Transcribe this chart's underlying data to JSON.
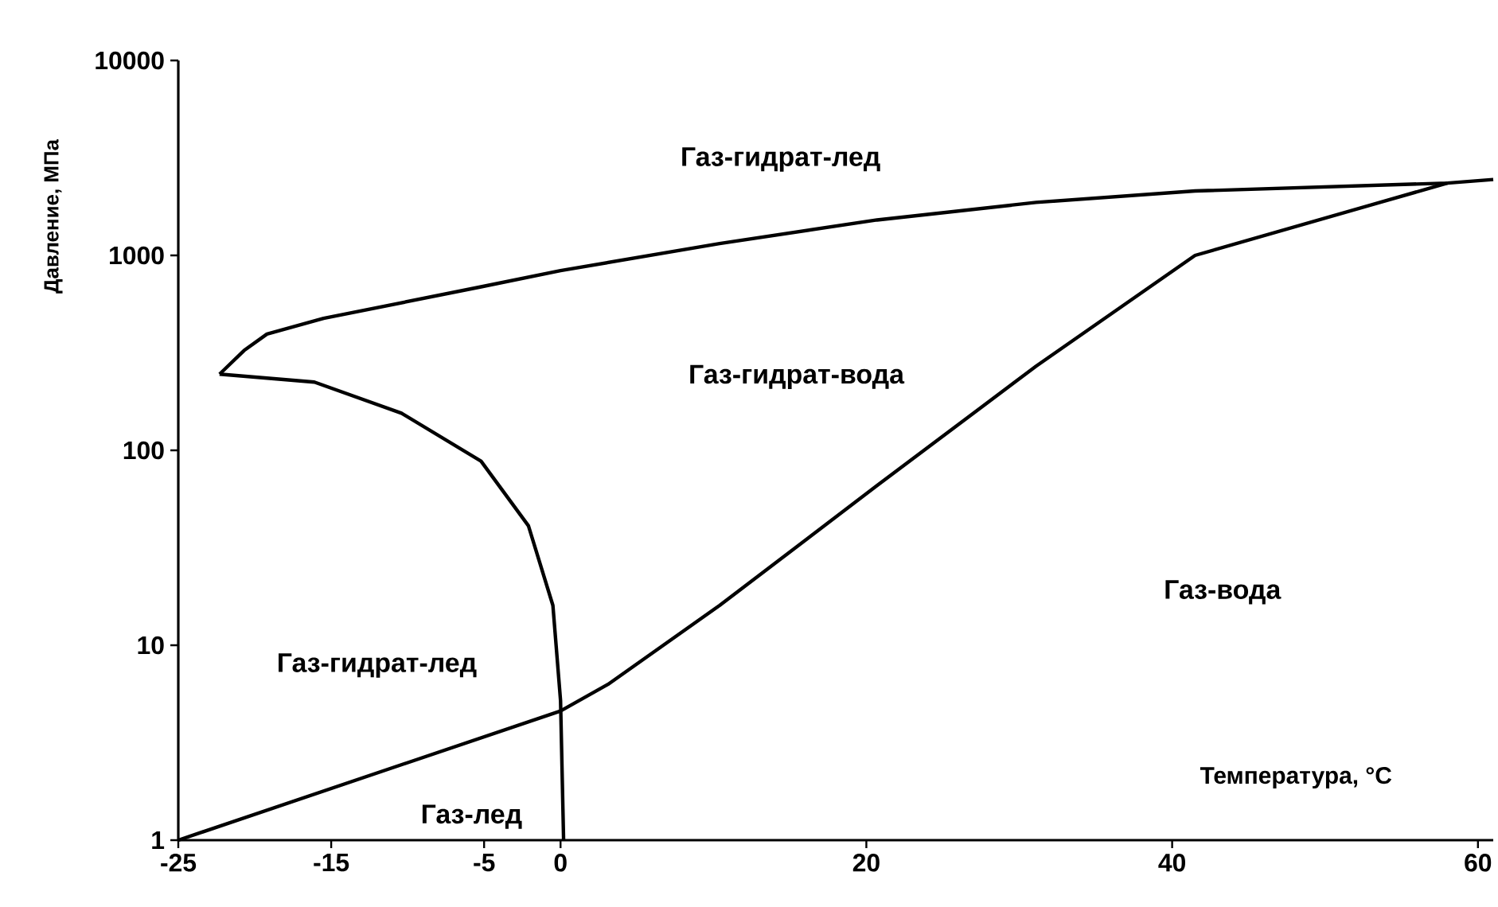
{
  "chart_data": {
    "type": "line",
    "xlabel": "Температура, °C",
    "ylabel": "Давление, МПа",
    "log": "y",
    "xlim": [
      -25,
      61
    ],
    "ylim": [
      1,
      10000
    ],
    "xticks": [
      -25,
      -15,
      -5,
      0,
      20,
      40,
      60
    ],
    "yticks": [
      1,
      10,
      100,
      1000,
      10000
    ],
    "series": [
      {
        "color": "#000000",
        "x": [
          -22.3,
          -20.7,
          -19.2,
          -15.5,
          -5.2,
          0,
          10.4,
          20.7,
          31.1,
          41.5,
          58,
          61
        ],
        "values": [
          246,
          325,
          395,
          475,
          690,
          835,
          1150,
          1520,
          1870,
          2140,
          2350,
          2450
        ]
      },
      {
        "color": "#000000",
        "x": [
          -22.3,
          -16.1,
          -10.4,
          -5.2,
          -2.1,
          -0.5,
          0,
          0.2
        ],
        "values": [
          246,
          224,
          155,
          88,
          41,
          16,
          5.2,
          1
        ]
      },
      {
        "color": "#000000",
        "x": [
          -25,
          0,
          3.1,
          10.4,
          20.7,
          31.1,
          41.5,
          58
        ],
        "values": [
          1,
          4.6,
          6.3,
          16,
          66,
          270,
          1000,
          2350
        ]
      }
    ],
    "annotations": [
      "Газ-гидрат-лед",
      "Газ-гидрат-вода",
      "Газ-вода",
      "Газ-гидрат-лед",
      "Газ-лед"
    ]
  }
}
